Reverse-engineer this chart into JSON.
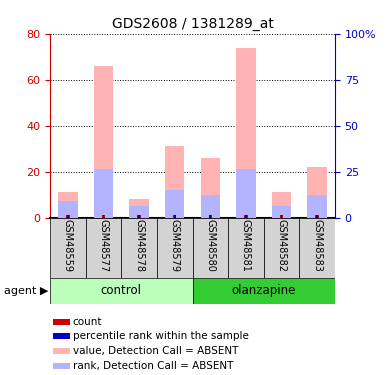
{
  "title": "GDS2608 / 1381289_at",
  "samples": [
    "GSM48559",
    "GSM48577",
    "GSM48578",
    "GSM48579",
    "GSM48580",
    "GSM48581",
    "GSM48582",
    "GSM48583"
  ],
  "pink_values": [
    11,
    66,
    8,
    31,
    26,
    74,
    11,
    22
  ],
  "blue_values": [
    7,
    21,
    5,
    12,
    10,
    21,
    5,
    10
  ],
  "groups": [
    {
      "label": "control",
      "indices": [
        0,
        1,
        2,
        3
      ],
      "light_color": "#ccffcc",
      "dark_color": "#44dd44"
    },
    {
      "label": "olanzapine",
      "indices": [
        4,
        5,
        6,
        7
      ],
      "light_color": "#22cc22",
      "dark_color": "#22cc22"
    }
  ],
  "ylim_left": [
    0,
    80
  ],
  "ylim_right": [
    0,
    100
  ],
  "yticks_left": [
    0,
    20,
    40,
    60,
    80
  ],
  "yticks_right": [
    0,
    25,
    50,
    75,
    100
  ],
  "ytick_right_labels": [
    "0",
    "25",
    "50",
    "75",
    "100%"
  ],
  "pink_color": "#ffb3b3",
  "blue_color": "#b3b3ff",
  "red_color": "#cc0000",
  "dark_blue_color": "#0000cc",
  "left_axis_color": "#cc0000",
  "right_axis_color": "#0000cc",
  "agent_label": "agent",
  "legend_items": [
    {
      "color": "#cc0000",
      "label": "count"
    },
    {
      "color": "#0000cc",
      "label": "percentile rank within the sample"
    },
    {
      "color": "#ffb3b3",
      "label": "value, Detection Call = ABSENT"
    },
    {
      "color": "#b3b3ff",
      "label": "rank, Detection Call = ABSENT"
    }
  ]
}
